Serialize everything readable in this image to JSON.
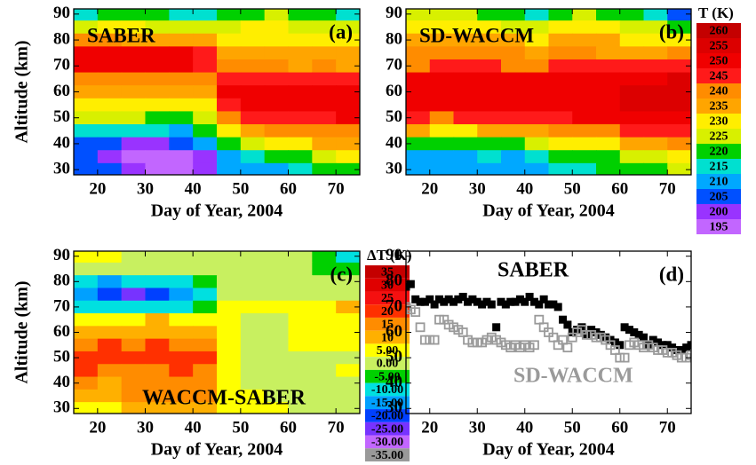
{
  "chart_data": [
    {
      "type": "contour",
      "title": "SABER",
      "panel_label": "(a)",
      "xlabel": "Day of Year, 2004",
      "ylabel": "Altitude (km)",
      "xlim": [
        15,
        75
      ],
      "ylim": [
        28,
        92
      ],
      "xticks": [
        20,
        30,
        40,
        50,
        60,
        70
      ],
      "yticks": [
        30,
        40,
        50,
        60,
        70,
        80,
        90
      ],
      "x": [
        17.5,
        22.5,
        27.5,
        32.5,
        37.5,
        42.5,
        47.5,
        52.5,
        57.5,
        62.5,
        67.5,
        72.5
      ],
      "y": [
        90,
        85,
        80,
        75,
        70,
        65,
        60,
        55,
        50,
        45,
        40,
        35,
        30
      ],
      "z": [
        [
          218,
          220,
          222,
          220,
          218,
          215,
          220,
          222,
          225,
          222,
          220,
          218
        ],
        [
          228,
          230,
          230,
          228,
          226,
          225,
          228,
          230,
          230,
          228,
          226,
          225
        ],
        [
          240,
          240,
          238,
          238,
          236,
          235,
          232,
          232,
          232,
          230,
          230,
          230
        ],
        [
          252,
          250,
          250,
          252,
          250,
          245,
          238,
          236,
          236,
          236,
          235,
          236
        ],
        [
          252,
          253,
          252,
          250,
          250,
          246,
          240,
          240,
          240,
          238,
          240,
          238
        ],
        [
          244,
          242,
          242,
          240,
          240,
          240,
          246,
          248,
          248,
          246,
          248,
          246
        ],
        [
          238,
          236,
          236,
          236,
          236,
          238,
          250,
          252,
          250,
          250,
          250,
          252
        ],
        [
          232,
          232,
          232,
          230,
          232,
          232,
          248,
          250,
          252,
          250,
          250,
          252
        ],
        [
          225,
          226,
          226,
          224,
          224,
          228,
          242,
          246,
          248,
          248,
          248,
          250
        ],
        [
          215,
          216,
          218,
          216,
          214,
          220,
          232,
          238,
          240,
          242,
          244,
          242
        ],
        [
          206,
          205,
          204,
          204,
          206,
          210,
          222,
          228,
          232,
          234,
          236,
          236
        ],
        [
          205,
          202,
          198,
          197,
          197,
          202,
          212,
          216,
          220,
          224,
          228,
          230
        ],
        [
          206,
          205,
          200,
          198,
          198,
          204,
          210,
          212,
          214,
          218,
          220,
          222
        ]
      ]
    },
    {
      "type": "contour",
      "title": "SD-WACCM",
      "panel_label": "(b)",
      "xlabel": "Day of Year, 2004",
      "xlim": [
        15,
        75
      ],
      "ylim": [
        28,
        92
      ],
      "xticks": [
        20,
        30,
        40,
        50,
        60,
        70
      ],
      "yticks": [
        30,
        40,
        50,
        60,
        70,
        80,
        90
      ],
      "x": [
        17.5,
        22.5,
        27.5,
        32.5,
        37.5,
        42.5,
        47.5,
        52.5,
        57.5,
        62.5,
        67.5,
        72.5
      ],
      "y": [
        90,
        85,
        80,
        75,
        70,
        65,
        60,
        55,
        50,
        45,
        40,
        35,
        30
      ],
      "z": [
        [
          225,
          228,
          225,
          222,
          220,
          218,
          222,
          225,
          222,
          220,
          215,
          205
        ],
        [
          232,
          234,
          232,
          230,
          228,
          228,
          230,
          232,
          230,
          228,
          225,
          220
        ],
        [
          236,
          238,
          236,
          236,
          236,
          234,
          236,
          236,
          235,
          234,
          232,
          232
        ],
        [
          240,
          242,
          240,
          240,
          240,
          238,
          240,
          240,
          238,
          238,
          238,
          240
        ],
        [
          244,
          246,
          245,
          245,
          244,
          244,
          246,
          246,
          246,
          246,
          248,
          248
        ],
        [
          250,
          250,
          250,
          252,
          250,
          250,
          252,
          252,
          252,
          254,
          254,
          256
        ],
        [
          252,
          252,
          250,
          250,
          252,
          252,
          254,
          254,
          254,
          256,
          256,
          258
        ],
        [
          250,
          250,
          250,
          250,
          250,
          252,
          252,
          254,
          254,
          256,
          256,
          258
        ],
        [
          246,
          244,
          245,
          246,
          246,
          248,
          248,
          250,
          250,
          252,
          252,
          254
        ],
        [
          236,
          234,
          234,
          236,
          236,
          238,
          240,
          242,
          244,
          246,
          246,
          248
        ],
        [
          222,
          220,
          222,
          224,
          224,
          226,
          230,
          232,
          234,
          236,
          238,
          240
        ],
        [
          214,
          212,
          214,
          216,
          214,
          218,
          220,
          222,
          224,
          226,
          228,
          230
        ],
        [
          212,
          210,
          210,
          212,
          212,
          214,
          216,
          218,
          220,
          222,
          224,
          226
        ]
      ],
      "colorbar": {
        "title": "T (K)",
        "ticks": [
          260,
          255,
          250,
          245,
          240,
          235,
          230,
          225,
          220,
          215,
          210,
          205,
          200,
          195
        ],
        "colors": [
          "#c40000",
          "#dc0000",
          "#f00000",
          "#ff1a1a",
          "#ff8c00",
          "#ffa500",
          "#ffee00",
          "#d8f000",
          "#00d000",
          "#00e0d0",
          "#00a8ff",
          "#0050ff",
          "#9933ff",
          "#c266ff"
        ]
      }
    },
    {
      "type": "contour",
      "title": "WACCM-SABER",
      "panel_label": "(c)",
      "xlabel": "Day of Year, 2004",
      "ylabel": "Altitude (km)",
      "xlim": [
        15,
        75
      ],
      "ylim": [
        28,
        92
      ],
      "xticks": [
        20,
        30,
        40,
        50,
        60,
        70
      ],
      "yticks": [
        30,
        40,
        50,
        60,
        70,
        80,
        90
      ],
      "x": [
        17.5,
        22.5,
        27.5,
        32.5,
        37.5,
        42.5,
        47.5,
        52.5,
        57.5,
        62.5,
        67.5,
        72.5
      ],
      "y": [
        90,
        85,
        80,
        75,
        70,
        65,
        60,
        55,
        50,
        45,
        40,
        35,
        30
      ],
      "z": [
        [
          6,
          7,
          4,
          3,
          3,
          2,
          3,
          4,
          2,
          0,
          -3,
          -8
        ],
        [
          2,
          3,
          2,
          0,
          0,
          1,
          2,
          2,
          1,
          0,
          -1,
          -4
        ],
        [
          -6,
          -12,
          -8,
          -10,
          -8,
          -4,
          0,
          2,
          1,
          0,
          0,
          0
        ],
        [
          -12,
          -18,
          -24,
          -16,
          -14,
          -6,
          2,
          4,
          2,
          2,
          3,
          2
        ],
        [
          -8,
          -10,
          -8,
          -6,
          -8,
          -2,
          6,
          6,
          6,
          8,
          8,
          10
        ],
        [
          6,
          8,
          8,
          10,
          8,
          8,
          6,
          4,
          4,
          6,
          6,
          8
        ],
        [
          14,
          14,
          14,
          14,
          12,
          12,
          6,
          4,
          4,
          6,
          6,
          6
        ],
        [
          18,
          20,
          18,
          20,
          18,
          16,
          6,
          4,
          2,
          6,
          6,
          6
        ],
        [
          22,
          20,
          20,
          22,
          22,
          20,
          6,
          4,
          2,
          4,
          4,
          4
        ],
        [
          20,
          18,
          16,
          18,
          20,
          18,
          8,
          4,
          4,
          4,
          2,
          6
        ],
        [
          16,
          14,
          16,
          18,
          16,
          16,
          8,
          4,
          2,
          2,
          2,
          4
        ],
        [
          10,
          10,
          16,
          19,
          17,
          16,
          8,
          6,
          4,
          2,
          0,
          0
        ],
        [
          6,
          6,
          10,
          14,
          14,
          10,
          6,
          6,
          6,
          4,
          4,
          4
        ]
      ],
      "colorbar": {
        "title": "ΔT (K)",
        "ticks": [
          35,
          30,
          25,
          20,
          15,
          10,
          {
            "value": 5,
            "label": "5.00"
          },
          {
            "value": 0,
            "label": "0.00"
          },
          {
            "value": -5,
            "label": "-5.00"
          },
          {
            "value": -10,
            "label": "-10.00"
          },
          {
            "value": -15,
            "label": "-15.00"
          },
          {
            "value": -20,
            "label": "-20.00"
          },
          {
            "value": -25,
            "label": "-25.00"
          },
          {
            "value": -30,
            "label": "-30.00"
          },
          {
            "value": -35,
            "label": "-35.00"
          }
        ],
        "colors": [
          "#c40000",
          "#e00000",
          "#f51010",
          "#ff3000",
          "#ff8c00",
          "#ffb000",
          "#ffff00",
          "#c8f060",
          "#00d000",
          "#00e0e0",
          "#00a0ff",
          "#0040ff",
          "#7733ff",
          "#c266ff",
          "#999999"
        ]
      }
    },
    {
      "type": "scatter",
      "panel_label": "(d)",
      "xlabel": "Day of Year, 2004",
      "xlim": [
        15,
        75
      ],
      "ylim": [
        28,
        92
      ],
      "xticks": [
        20,
        30,
        40,
        50,
        60,
        70
      ],
      "yticks": [
        30,
        40,
        50,
        60,
        70,
        80,
        90
      ],
      "x": [
        15,
        16,
        17,
        18,
        19,
        20,
        21,
        22,
        23,
        24,
        25,
        26,
        27,
        28,
        29,
        30,
        31,
        32,
        33,
        34,
        35,
        36,
        37,
        38,
        39,
        40,
        41,
        42,
        43,
        44,
        45,
        46,
        47,
        48,
        49,
        50,
        51,
        52,
        53,
        54,
        55,
        56,
        57,
        58,
        59,
        60,
        61,
        62,
        63,
        64,
        65,
        66,
        67,
        68,
        69,
        70,
        71,
        72,
        73,
        74,
        75
      ],
      "series": [
        {
          "name": "SABER",
          "color": "#000000",
          "filled": true,
          "values": [
            78,
            79,
            73,
            72,
            72,
            73,
            71,
            73,
            72,
            73,
            72,
            73,
            74,
            72,
            73,
            72,
            71,
            72,
            71,
            62,
            72,
            71,
            72,
            72,
            73,
            72,
            74,
            72,
            71,
            73,
            71,
            71,
            70,
            65,
            63,
            60,
            61,
            62,
            59,
            61,
            60,
            59,
            58,
            57,
            56,
            55,
            62,
            61,
            60,
            59,
            58,
            55,
            57,
            56,
            55,
            55,
            54,
            53,
            53,
            54,
            55
          ]
        },
        {
          "name": "SD-WACCM",
          "color": "#9a9a9a",
          "filled": false,
          "values": [
            70,
            69,
            68,
            62,
            57,
            57,
            57,
            65,
            65,
            63,
            62,
            61,
            60,
            57,
            56,
            56,
            56,
            57,
            58,
            57,
            56,
            55,
            54,
            55,
            54,
            55,
            54,
            55,
            65,
            62,
            60,
            58,
            55,
            57,
            54,
            58,
            60,
            61,
            59,
            59,
            58,
            58,
            57,
            55,
            53,
            50,
            50,
            55,
            56,
            55,
            54,
            55,
            54,
            53,
            53,
            52,
            52,
            51,
            50,
            50,
            51
          ]
        }
      ]
    }
  ]
}
